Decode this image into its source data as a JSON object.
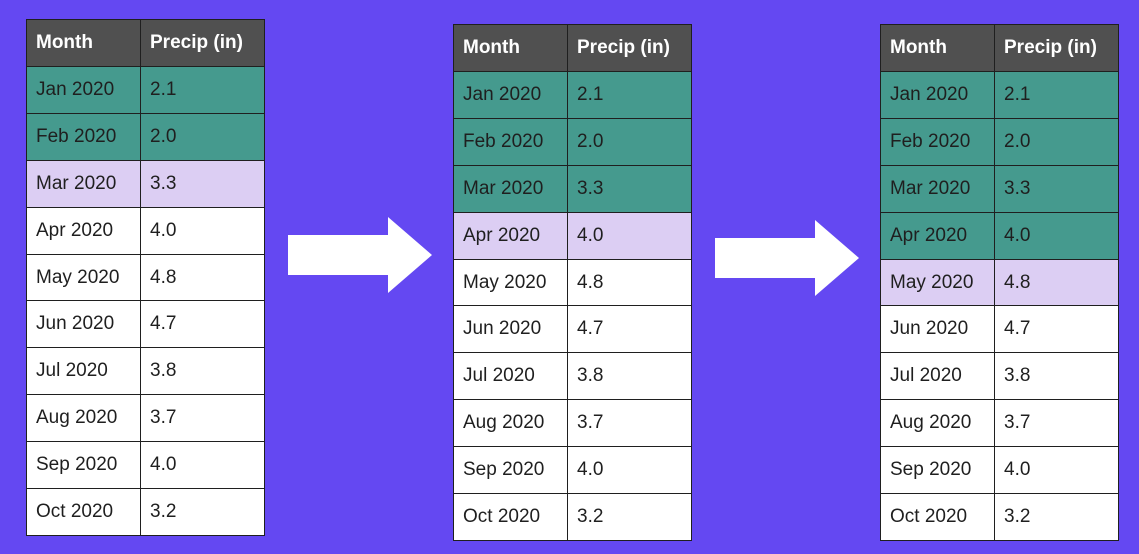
{
  "headers": [
    "Month",
    "Precip (in)"
  ],
  "rows": [
    {
      "month": "Jan 2020",
      "precip": "2.1"
    },
    {
      "month": "Feb 2020",
      "precip": "2.0"
    },
    {
      "month": "Mar 2020",
      "precip": "3.3"
    },
    {
      "month": "Apr 2020",
      "precip": "4.0"
    },
    {
      "month": "May 2020",
      "precip": "4.8"
    },
    {
      "month": "Jun 2020",
      "precip": "4.7"
    },
    {
      "month": "Jul 2020",
      "precip": "3.8"
    },
    {
      "month": "Aug 2020",
      "precip": "3.7"
    },
    {
      "month": "Sep 2020",
      "precip": "4.0"
    },
    {
      "month": "Oct 2020",
      "precip": "3.2"
    }
  ],
  "tables": [
    {
      "window_rows": [
        0,
        1
      ],
      "target_row": 2
    },
    {
      "window_rows": [
        0,
        1,
        2
      ],
      "target_row": 3
    },
    {
      "window_rows": [
        0,
        1,
        2,
        3
      ],
      "target_row": 4
    }
  ],
  "colors": {
    "background": "#6448F2",
    "header": "#505050",
    "window_row": "#459A8E",
    "target_row": "#DCCEF3",
    "plain_row": "#FFFFFF",
    "arrow": "#FFFFFF"
  },
  "icons": [
    "right-arrow-icon",
    "right-arrow-icon"
  ]
}
